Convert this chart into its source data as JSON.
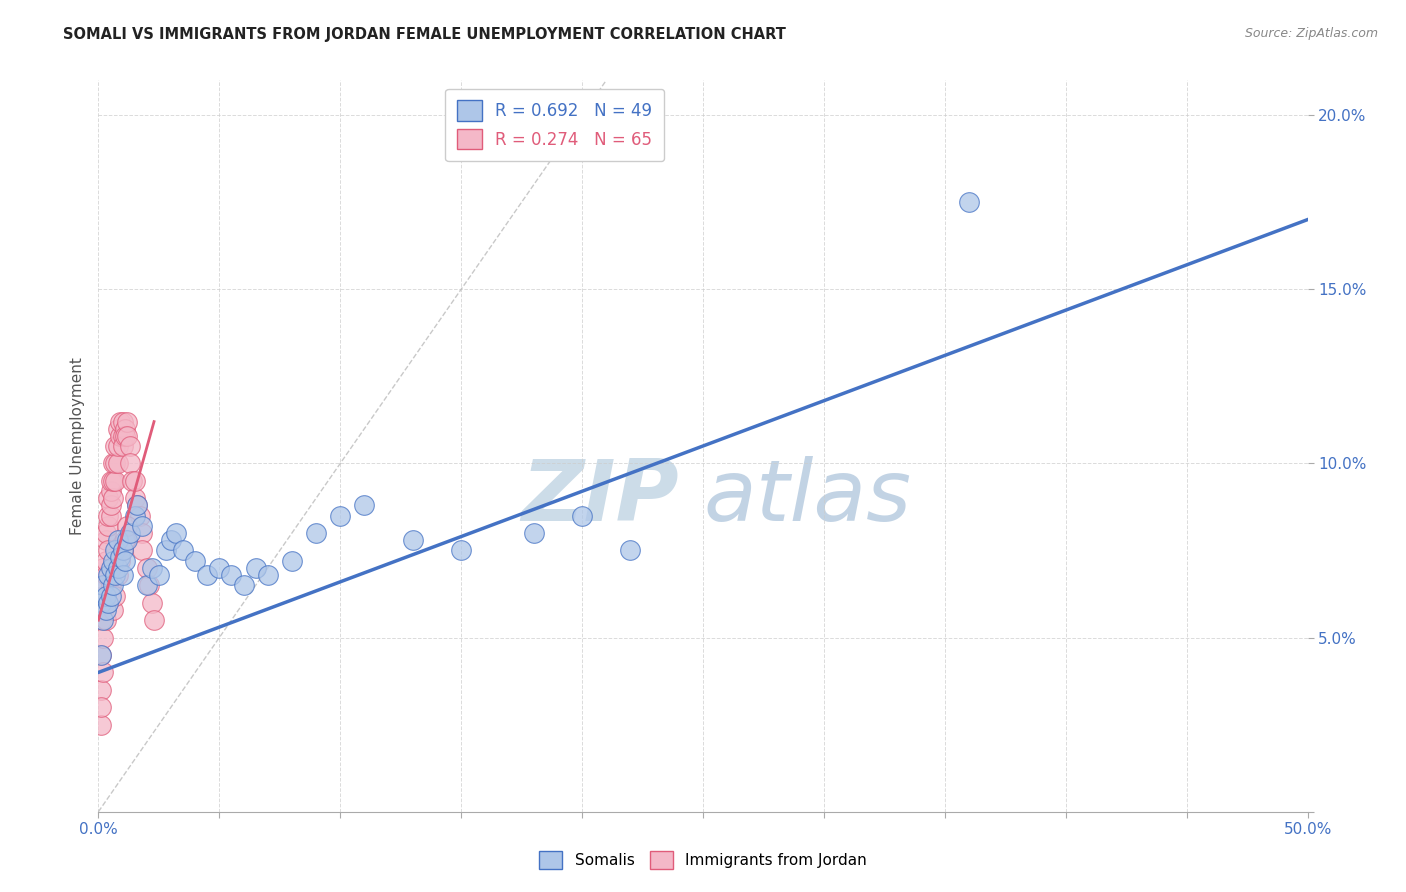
{
  "title": "SOMALI VS IMMIGRANTS FROM JORDAN FEMALE UNEMPLOYMENT CORRELATION CHART",
  "source": "Source: ZipAtlas.com",
  "ylabel": "Female Unemployment",
  "xlim": [
    0.0,
    0.5
  ],
  "ylim": [
    0.0,
    0.21
  ],
  "xticks": [
    0.0,
    0.05,
    0.1,
    0.15,
    0.2,
    0.25,
    0.3,
    0.35,
    0.4,
    0.45,
    0.5
  ],
  "yticks": [
    0.0,
    0.05,
    0.1,
    0.15,
    0.2
  ],
  "xticklabels_show": [
    "0.0%",
    "",
    "",
    "",
    "",
    "",
    "",
    "",
    "",
    "",
    "50.0%"
  ],
  "yticklabels_right": [
    "",
    "5.0%",
    "10.0%",
    "15.0%",
    "20.0%"
  ],
  "somali_R": 0.692,
  "somali_N": 49,
  "jordan_R": 0.274,
  "jordan_N": 65,
  "somali_color": "#aec6e8",
  "somali_line_color": "#4472c4",
  "jordan_color": "#f4b8c8",
  "jordan_line_color": "#e05c7a",
  "watermark_zip": "ZIP",
  "watermark_atlas": "atlas",
  "watermark_color": "#ccdce8",
  "background_color": "#ffffff",
  "grid_color": "#cccccc",
  "somali_x": [
    0.001,
    0.002,
    0.002,
    0.003,
    0.003,
    0.004,
    0.004,
    0.005,
    0.005,
    0.006,
    0.006,
    0.007,
    0.007,
    0.008,
    0.008,
    0.009,
    0.01,
    0.01,
    0.011,
    0.012,
    0.013,
    0.015,
    0.016,
    0.018,
    0.02,
    0.022,
    0.025,
    0.028,
    0.03,
    0.032,
    0.035,
    0.04,
    0.045,
    0.05,
    0.055,
    0.06,
    0.065,
    0.07,
    0.08,
    0.09,
    0.1,
    0.11,
    0.13,
    0.15,
    0.18,
    0.2,
    0.22,
    0.36,
    0.001
  ],
  "somali_y": [
    0.06,
    0.055,
    0.065,
    0.058,
    0.062,
    0.06,
    0.068,
    0.062,
    0.07,
    0.065,
    0.072,
    0.068,
    0.075,
    0.07,
    0.078,
    0.073,
    0.068,
    0.075,
    0.072,
    0.078,
    0.08,
    0.085,
    0.088,
    0.082,
    0.065,
    0.07,
    0.068,
    0.075,
    0.078,
    0.08,
    0.075,
    0.072,
    0.068,
    0.07,
    0.068,
    0.065,
    0.07,
    0.068,
    0.072,
    0.08,
    0.085,
    0.088,
    0.078,
    0.075,
    0.08,
    0.085,
    0.075,
    0.175,
    0.045
  ],
  "jordan_x": [
    0.001,
    0.001,
    0.001,
    0.002,
    0.002,
    0.002,
    0.002,
    0.003,
    0.003,
    0.003,
    0.003,
    0.004,
    0.004,
    0.004,
    0.004,
    0.005,
    0.005,
    0.005,
    0.005,
    0.006,
    0.006,
    0.006,
    0.007,
    0.007,
    0.007,
    0.008,
    0.008,
    0.008,
    0.009,
    0.009,
    0.01,
    0.01,
    0.01,
    0.011,
    0.011,
    0.012,
    0.012,
    0.013,
    0.013,
    0.014,
    0.015,
    0.015,
    0.016,
    0.017,
    0.018,
    0.018,
    0.02,
    0.021,
    0.022,
    0.023,
    0.001,
    0.001,
    0.002,
    0.002,
    0.003,
    0.004,
    0.005,
    0.006,
    0.007,
    0.008,
    0.009,
    0.01,
    0.011,
    0.012,
    0.001
  ],
  "jordan_y": [
    0.055,
    0.045,
    0.06,
    0.062,
    0.058,
    0.065,
    0.07,
    0.068,
    0.072,
    0.078,
    0.08,
    0.075,
    0.082,
    0.085,
    0.09,
    0.085,
    0.088,
    0.092,
    0.095,
    0.09,
    0.095,
    0.1,
    0.095,
    0.1,
    0.105,
    0.1,
    0.11,
    0.105,
    0.108,
    0.112,
    0.108,
    0.112,
    0.105,
    0.11,
    0.108,
    0.112,
    0.108,
    0.105,
    0.1,
    0.095,
    0.09,
    0.095,
    0.088,
    0.085,
    0.08,
    0.075,
    0.07,
    0.065,
    0.06,
    0.055,
    0.035,
    0.025,
    0.04,
    0.05,
    0.055,
    0.06,
    0.065,
    0.058,
    0.062,
    0.068,
    0.072,
    0.075,
    0.078,
    0.082,
    0.03
  ],
  "somali_line_x": [
    0.0,
    0.5
  ],
  "somali_line_y": [
    0.04,
    0.17
  ],
  "jordan_line_x": [
    0.0,
    0.023
  ],
  "jordan_line_y": [
    0.055,
    0.112
  ],
  "diag_line_x": [
    0.0,
    0.21
  ],
  "diag_line_y": [
    0.0,
    0.21
  ]
}
